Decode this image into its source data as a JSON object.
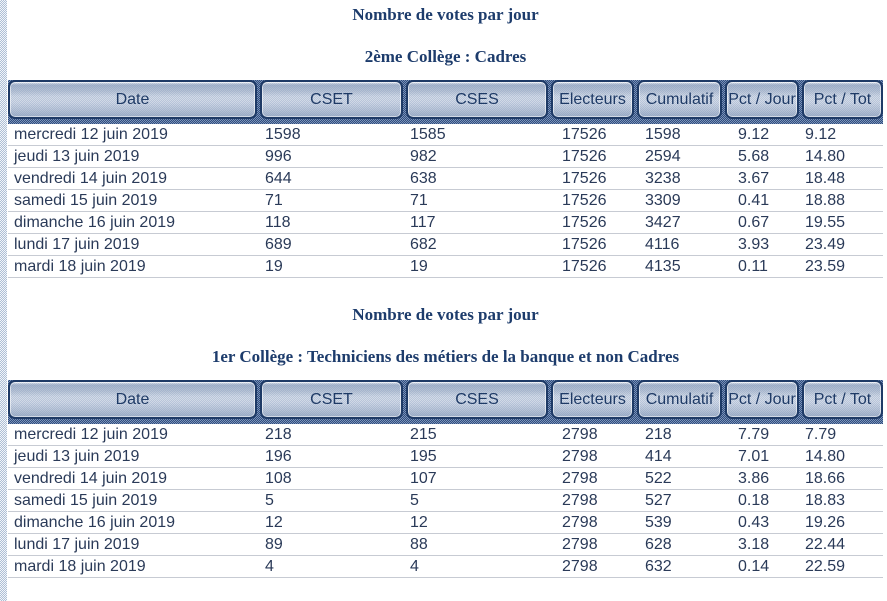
{
  "page": {
    "background": "#ffffff",
    "palette": {
      "title_text": "#1d3c6c",
      "cell_text": "#2a3a58",
      "header_button_border": "#1e3a66",
      "header_button_face": "#ccd5e2",
      "header_band_dark": "#2f4d7e",
      "header_band_light": "#7b92b8",
      "row_separator": "#c7cbd3",
      "left_strip_dark": "#aebfd6",
      "left_strip_light": "#f2f5f9"
    }
  },
  "tables": [
    {
      "title": "Nombre de votes par jour",
      "subtitle": "2ème Collège : Cadres",
      "columns": [
        "Date",
        "CSET",
        "CSES",
        "Electeurs",
        "Cumulatif",
        "Pct / Jour",
        "Pct / Tot"
      ],
      "rows": [
        [
          "mercredi 12 juin 2019",
          "1598",
          "1585",
          "17526",
          "1598",
          "9.12",
          "9.12"
        ],
        [
          "jeudi 13 juin 2019",
          "996",
          "982",
          "17526",
          "2594",
          "5.68",
          "14.80"
        ],
        [
          "vendredi 14 juin 2019",
          "644",
          "638",
          "17526",
          "3238",
          "3.67",
          "18.48"
        ],
        [
          "samedi 15 juin 2019",
          "71",
          "71",
          "17526",
          "3309",
          "0.41",
          "18.88"
        ],
        [
          "dimanche 16 juin 2019",
          "118",
          "117",
          "17526",
          "3427",
          "0.67",
          "19.55"
        ],
        [
          "lundi 17 juin 2019",
          "689",
          "682",
          "17526",
          "4116",
          "3.93",
          "23.49"
        ],
        [
          "mardi 18 juin 2019",
          "19",
          "19",
          "17526",
          "4135",
          "0.11",
          "23.59"
        ]
      ]
    },
    {
      "title": "Nombre de votes par jour",
      "subtitle": "1er Collège : Techniciens des métiers de la banque et non Cadres",
      "columns": [
        "Date",
        "CSET",
        "CSES",
        "Electeurs",
        "Cumulatif",
        "Pct / Jour",
        "Pct / Tot"
      ],
      "rows": [
        [
          "mercredi 12 juin 2019",
          "218",
          "215",
          "2798",
          "218",
          "7.79",
          "7.79"
        ],
        [
          "jeudi 13 juin 2019",
          "196",
          "195",
          "2798",
          "414",
          "7.01",
          "14.80"
        ],
        [
          "vendredi 14 juin 2019",
          "108",
          "107",
          "2798",
          "522",
          "3.86",
          "18.66"
        ],
        [
          "samedi 15 juin 2019",
          "5",
          "5",
          "2798",
          "527",
          "0.18",
          "18.83"
        ],
        [
          "dimanche 16 juin 2019",
          "12",
          "12",
          "2798",
          "539",
          "0.43",
          "19.26"
        ],
        [
          "lundi 17 juin 2019",
          "89",
          "88",
          "2798",
          "628",
          "3.18",
          "22.44"
        ],
        [
          "mardi 18 juin 2019",
          "4",
          "4",
          "2798",
          "632",
          "0.14",
          "22.59"
        ]
      ]
    }
  ]
}
